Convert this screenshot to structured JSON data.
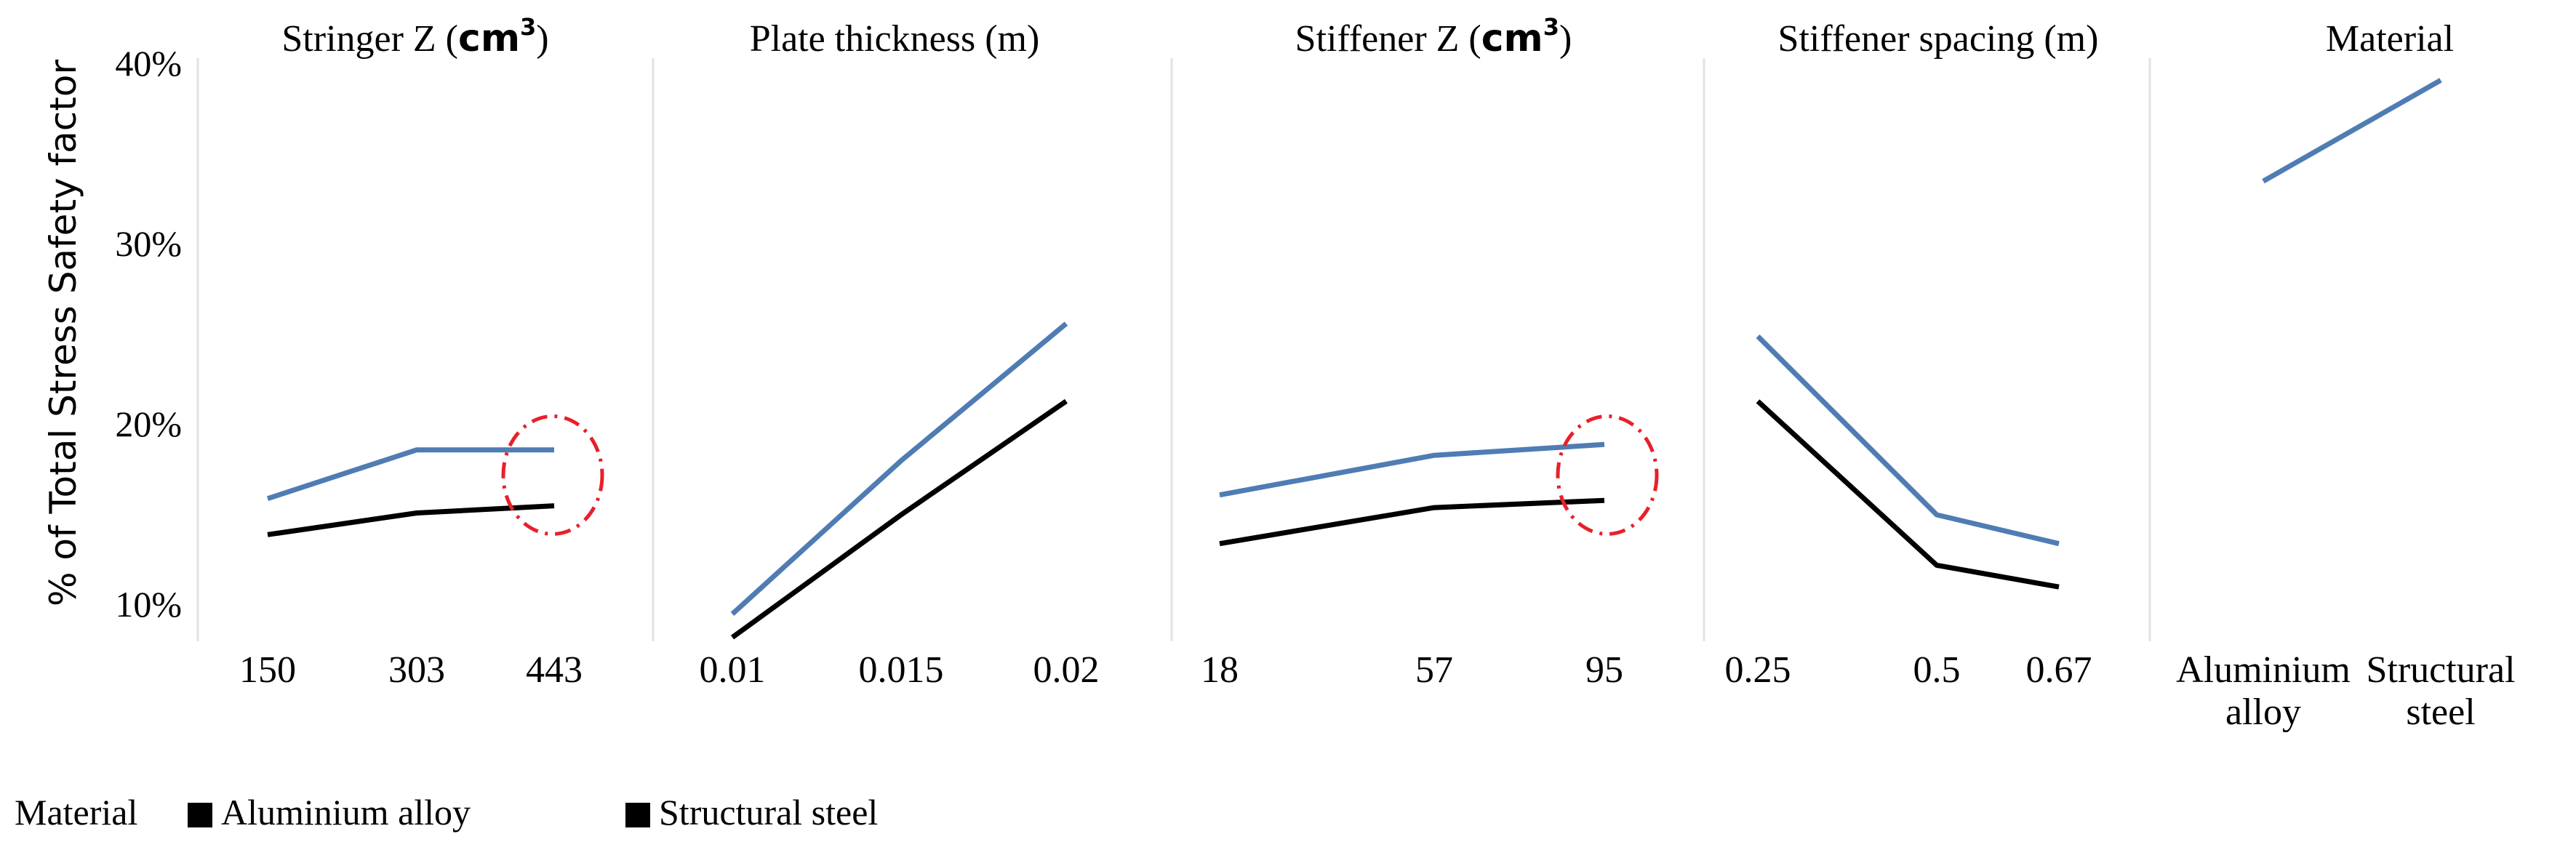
{
  "chart_data": {
    "type": "line",
    "ylabel": "% of Total Stress Safety factor",
    "yticks": [
      "10%",
      "20%",
      "30%",
      "40%"
    ],
    "ylim": [
      8.5,
      40.5
    ],
    "panels": [
      {
        "title": "Stringer Z (",
        "title_unit": "cm",
        "title_sup": "3",
        "title_close": ")",
        "categories": [
          "150",
          "303",
          "443"
        ],
        "series": [
          {
            "name": "Aluminium alloy",
            "color": "#4f7cb3",
            "values": [
              15.9,
              18.6,
              18.6
            ]
          },
          {
            "name": "Structural steel",
            "color": "#000000",
            "values": [
              13.9,
              15.1,
              15.5
            ]
          }
        ],
        "highlight_category": "443"
      },
      {
        "title": "Plate thickness (m)",
        "categories": [
          "0.01",
          "0.015",
          "0.02"
        ],
        "series": [
          {
            "name": "Aluminium alloy",
            "color": "#4f7cb3",
            "values": [
              9.5,
              18.0,
              25.6
            ]
          },
          {
            "name": "Structural steel",
            "color": "#000000",
            "values": [
              8.2,
              15.0,
              21.3
            ]
          }
        ]
      },
      {
        "title": "Stiffener Z (",
        "title_unit": "cm",
        "title_sup": "3",
        "title_close": ")",
        "categories": [
          "18",
          "57",
          "95"
        ],
        "series": [
          {
            "name": "Aluminium alloy",
            "color": "#4f7cb3",
            "values": [
              16.1,
              18.3,
              18.9
            ]
          },
          {
            "name": "Structural steel",
            "color": "#000000",
            "values": [
              13.4,
              15.4,
              15.8
            ]
          }
        ],
        "highlight_category": "95"
      },
      {
        "title": "Stiffener spacing (m)",
        "categories": [
          "0.25",
          "0.5",
          "0.67"
        ],
        "series": [
          {
            "name": "Aluminium alloy",
            "color": "#4f7cb3",
            "values": [
              24.9,
              15.0,
              13.4
            ]
          },
          {
            "name": "Structural steel",
            "color": "#000000",
            "values": [
              21.3,
              12.2,
              11.0
            ]
          }
        ]
      },
      {
        "title": "Material",
        "categories": [
          [
            "Aluminium",
            "alloy"
          ],
          [
            "Structural",
            "steel"
          ]
        ],
        "series": [
          {
            "name": "Aluminium alloy",
            "color": "#4f7cb3",
            "values": [
              33.5,
              39.1
            ]
          }
        ]
      }
    ],
    "legend": {
      "position": "bottom-left",
      "title": "Material",
      "entries": [
        {
          "label": "Aluminium alloy",
          "color": "#000000"
        },
        {
          "label": "Structural steel",
          "color": "#000000"
        }
      ]
    },
    "colors": {
      "aluminium": "#4f7cb3",
      "steel": "#000000",
      "highlight": "#e8202a",
      "divider": "#e3e3e3"
    }
  }
}
